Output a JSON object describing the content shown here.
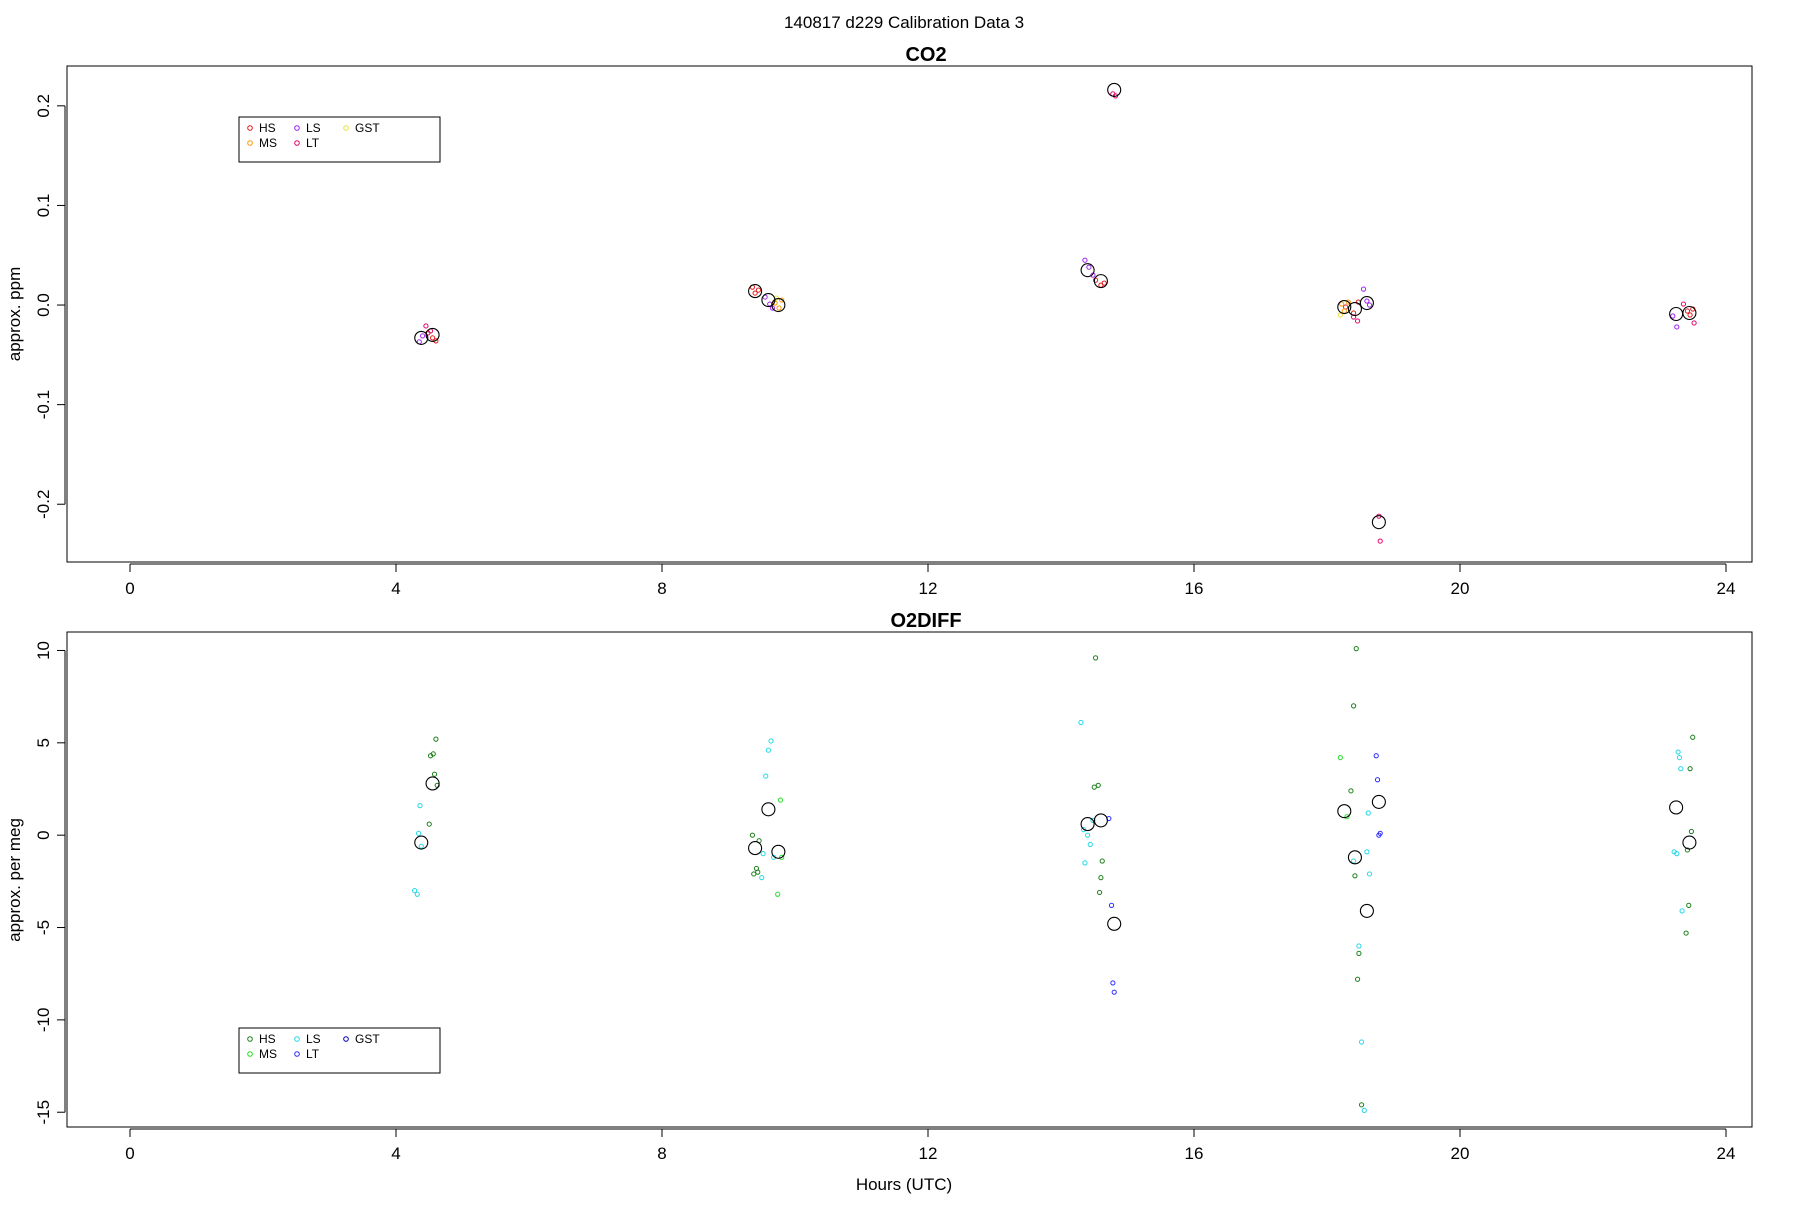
{
  "figure": {
    "main_title": "140817   d229   Calibration Data 3",
    "xlabel": "Hours (UTC)"
  },
  "chart_data": [
    {
      "type": "scatter",
      "title": "CO2",
      "xlabel": "",
      "ylabel": "approx. ppm",
      "xlim": [
        -0.9,
        24.5
      ],
      "ylim": [
        -0.258,
        0.24
      ],
      "xticks": [
        0,
        4,
        8,
        12,
        16,
        20,
        24
      ],
      "yticks": [
        -0.2,
        -0.1,
        0.0,
        0.1,
        0.2
      ],
      "ytick_labels": [
        "-0.2",
        "-0.1",
        "0.0",
        "0.1",
        "0.2"
      ],
      "grid": false,
      "legend": {
        "position": "top-left",
        "columns": [
          [
            "HS",
            "MS"
          ],
          [
            "LS",
            "LT"
          ],
          [
            "GST"
          ]
        ],
        "entries": [
          {
            "name": "HS",
            "color": "#e41a1c"
          },
          {
            "name": "MS",
            "color": "#ff9900"
          },
          {
            "name": "LS",
            "color": "#a020f0"
          },
          {
            "name": "LT",
            "color": "#e4006b"
          },
          {
            "name": "GST",
            "color": "#f0e040"
          }
        ]
      },
      "series": [
        {
          "name": "HS",
          "color": "#e41a1c",
          "x": [
            4.48,
            4.55,
            4.6,
            9.36,
            9.4,
            9.45,
            14.52,
            14.6,
            14.65,
            18.28,
            18.4,
            18.47,
            23.42,
            23.46,
            23.5
          ],
          "y": [
            -0.028,
            -0.033,
            -0.036,
            0.018,
            0.012,
            0.015,
            0.025,
            0.02,
            0.022,
            -0.002,
            -0.008,
            0.003,
            -0.006,
            -0.01,
            -0.004
          ]
        },
        {
          "name": "MS",
          "color": "#ff9900",
          "x": [
            9.7,
            9.76,
            9.8,
            18.22,
            18.26,
            18.32
          ],
          "y": [
            0.002,
            -0.003,
            0.005,
            0.001,
            -0.006,
            0.003
          ]
        },
        {
          "name": "LS",
          "color": "#a020f0",
          "x": [
            4.35,
            4.4,
            9.55,
            9.62,
            9.66,
            14.36,
            14.42,
            14.48,
            18.55,
            18.6,
            18.64,
            23.2,
            23.26
          ],
          "y": [
            -0.037,
            -0.031,
            0.008,
            0.001,
            -0.003,
            0.045,
            0.038,
            0.03,
            0.016,
            0.004,
            0.0,
            -0.011,
            -0.022
          ]
        },
        {
          "name": "LT",
          "color": "#e4006b",
          "x": [
            4.45,
            4.52,
            14.78,
            14.82,
            18.78,
            18.8,
            18.4,
            18.46,
            23.36,
            23.52
          ],
          "y": [
            -0.021,
            -0.026,
            0.212,
            0.21,
            -0.212,
            -0.237,
            -0.012,
            -0.016,
            0.001,
            -0.018
          ]
        },
        {
          "name": "GST",
          "color": "#f0e040",
          "x": [
            9.72,
            18.2
          ],
          "y": [
            0.007,
            -0.01
          ]
        },
        {
          "name": "mean",
          "color": "#000000",
          "x": [
            4.38,
            4.55,
            9.4,
            9.6,
            9.75,
            14.4,
            14.6,
            14.8,
            18.26,
            18.42,
            18.6,
            18.78,
            23.25,
            23.45
          ],
          "y": [
            -0.033,
            -0.03,
            0.014,
            0.005,
            0.0,
            0.035,
            0.024,
            0.216,
            -0.002,
            -0.004,
            0.002,
            -0.218,
            -0.009,
            -0.008
          ]
        }
      ]
    },
    {
      "type": "scatter",
      "title": "O2DIFF",
      "xlabel": "Hours (UTC)",
      "ylabel": "approx. per meg",
      "xlim": [
        -0.9,
        24.5
      ],
      "ylim": [
        -15.8,
        11.0
      ],
      "xticks": [
        0,
        4,
        8,
        12,
        16,
        20,
        24
      ],
      "yticks": [
        -15,
        -10,
        -5,
        0,
        5,
        10
      ],
      "ytick_labels": [
        "-15",
        "-10",
        "-5",
        "0",
        "5",
        "10"
      ],
      "grid": false,
      "legend": {
        "position": "bottom-left",
        "columns": [
          [
            "HS",
            "MS"
          ],
          [
            "LS",
            "LT"
          ],
          [
            "GST"
          ]
        ],
        "entries": [
          {
            "name": "HS",
            "color": "#1a7f1a"
          },
          {
            "name": "MS",
            "color": "#22dd22"
          },
          {
            "name": "LS",
            "color": "#22d8e8"
          },
          {
            "name": "LT",
            "color": "#2b2bff"
          },
          {
            "name": "GST",
            "color": "#0000aa"
          }
        ]
      },
      "series": [
        {
          "name": "HS",
          "color": "#1a7f1a",
          "x": [
            4.52,
            4.56,
            4.58,
            4.6,
            4.62,
            4.5,
            9.36,
            9.42,
            9.44,
            9.46,
            9.38,
            14.52,
            14.56,
            14.62,
            14.6,
            14.58,
            14.5,
            18.36,
            18.4,
            18.44,
            18.42,
            18.48,
            18.46,
            18.52,
            23.4,
            23.44,
            23.48,
            23.46,
            23.42,
            23.5
          ],
          "y": [
            4.3,
            4.4,
            3.3,
            5.2,
            2.7,
            0.6,
            0.0,
            -1.8,
            -2.0,
            -0.3,
            -2.1,
            9.6,
            2.7,
            -1.4,
            -2.3,
            -3.1,
            2.6,
            2.4,
            7.0,
            10.1,
            -2.2,
            -6.4,
            -7.8,
            -14.6,
            -5.3,
            -3.8,
            0.2,
            3.6,
            -0.8,
            5.3
          ]
        },
        {
          "name": "MS",
          "color": "#22dd22",
          "x": [
            9.74,
            9.78,
            9.8,
            18.2,
            18.3
          ],
          "y": [
            -3.2,
            1.9,
            -1.2,
            4.2,
            1.0
          ]
        },
        {
          "name": "LS",
          "color": "#22d8e8",
          "x": [
            4.28,
            4.32,
            4.34,
            4.36,
            4.38,
            9.5,
            9.56,
            9.6,
            9.64,
            9.68,
            9.52,
            14.3,
            14.36,
            14.4,
            14.44,
            14.48,
            14.34,
            18.4,
            18.48,
            18.52,
            18.56,
            18.6,
            18.62,
            18.64,
            23.22,
            23.26,
            23.28,
            23.3,
            23.32,
            23.34
          ],
          "y": [
            -3.0,
            -3.2,
            0.1,
            1.6,
            -0.6,
            -2.3,
            3.2,
            4.6,
            5.1,
            -1.2,
            -1.0,
            6.1,
            -1.5,
            0.0,
            -0.5,
            0.8,
            0.3,
            -1.4,
            -6.0,
            -11.2,
            -14.9,
            -0.9,
            1.2,
            -2.1,
            -0.9,
            -1.0,
            4.5,
            4.2,
            3.6,
            -4.1
          ]
        },
        {
          "name": "LT",
          "color": "#2b2bff",
          "x": [
            14.72,
            14.76,
            14.78,
            14.8,
            18.74,
            18.76,
            18.78,
            18.8
          ],
          "y": [
            0.9,
            -3.8,
            -8.0,
            -8.5,
            4.3,
            3.0,
            0.0,
            0.1
          ]
        },
        {
          "name": "GST",
          "color": "#0000aa",
          "x": [],
          "y": []
        },
        {
          "name": "mean",
          "color": "#000000",
          "x": [
            4.38,
            4.55,
            9.4,
            9.6,
            9.75,
            14.4,
            14.6,
            14.8,
            18.26,
            18.42,
            18.6,
            18.78,
            23.25,
            23.45
          ],
          "y": [
            -0.4,
            2.8,
            -0.7,
            1.4,
            -0.9,
            0.6,
            0.8,
            -4.8,
            1.3,
            -1.2,
            -4.1,
            1.8,
            1.5,
            -0.4
          ]
        }
      ]
    }
  ]
}
